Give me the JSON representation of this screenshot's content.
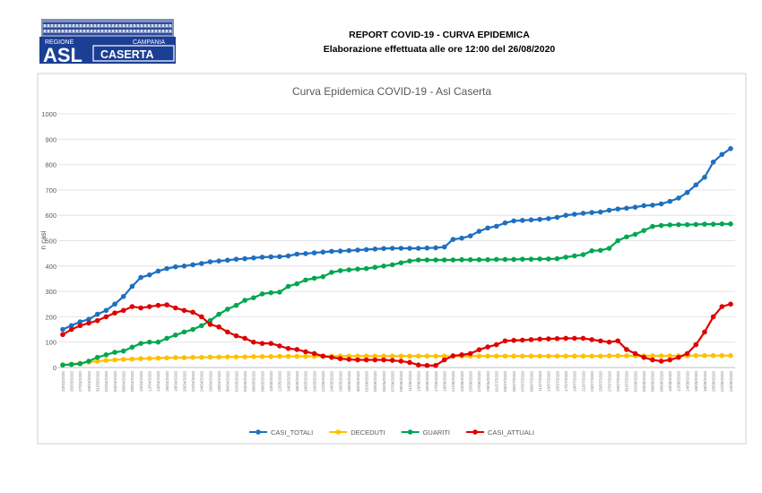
{
  "header": {
    "title": "REPORT COVID-19 - CURVA EPIDEMICA",
    "subtitle": "Elaborazione effettuata alle ore 12:00 del 26/08/2020"
  },
  "logo": {
    "region": "REGIONE",
    "region2": "CAMPANIA",
    "asl": "ASL",
    "city": "CASERTA",
    "color": "#1b3f94"
  },
  "chart_data": {
    "type": "line",
    "title": "Curva Epidemica COVID-19 - Asl Caserta",
    "ylabel": "n casi",
    "xlabel": "",
    "ylim": [
      0,
      1000
    ],
    "yticks": [
      "0",
      "100",
      "200",
      "300",
      "400",
      "500",
      "600",
      "700",
      "800",
      "900",
      "1000"
    ],
    "grid": true,
    "legend_placement": "bottom",
    "x": [
      "23/03/2020",
      "25/03/2020",
      "27/03/2020",
      "29/03/2020",
      "31/03/2020",
      "02/04/2020",
      "04/04/2020",
      "06/04/2020",
      "08/04/2020",
      "10/04/2020",
      "12/04/2020",
      "14/04/2020",
      "16/04/2020",
      "18/04/2020",
      "20/04/2020",
      "22/04/2020",
      "24/04/2020",
      "26/04/2020",
      "28/04/2020",
      "30/04/2020",
      "02/05/2020",
      "04/05/2020",
      "06/05/2020",
      "08/05/2020",
      "10/05/2020",
      "12/05/2020",
      "14/05/2020",
      "16/05/2020",
      "18/05/2020",
      "20/05/2020",
      "22/05/2020",
      "24/05/2020",
      "26/05/2020",
      "28/05/2020",
      "30/05/2020",
      "01/06/2020",
      "03/06/2020",
      "05/06/2020",
      "07/06/2020",
      "09/06/2020",
      "11/06/2020",
      "13/06/2020",
      "15/06/2020",
      "17/06/2020",
      "19/06/2020",
      "21/06/2020",
      "23/06/2020",
      "25/06/2020",
      "27/06/2020",
      "29/06/2020",
      "01/07/2020",
      "03/07/2020",
      "05/07/2020",
      "07/07/2020",
      "09/07/2020",
      "11/07/2020",
      "13/07/2020",
      "15/07/2020",
      "17/07/2020",
      "19/07/2020",
      "21/07/2020",
      "23/07/2020",
      "25/07/2020",
      "27/07/2020",
      "29/07/2020",
      "31/07/2020",
      "02/08/2020",
      "04/08/2020",
      "06/08/2020",
      "08/08/2020",
      "10/08/2020",
      "12/08/2020",
      "14/08/2020",
      "16/08/2020",
      "18/08/2020",
      "20/08/2020",
      "22/08/2020",
      "24/08/2020"
    ],
    "series": [
      {
        "name": "CASI_TOTALI",
        "color": "#1f6fbf",
        "values": [
          150,
          165,
          180,
          190,
          210,
          225,
          250,
          280,
          320,
          355,
          365,
          380,
          390,
          397,
          400,
          405,
          410,
          417,
          420,
          423,
          427,
          429,
          432,
          435,
          436,
          437,
          440,
          447,
          449,
          452,
          455,
          458,
          459,
          461,
          463,
          465,
          467,
          469,
          470,
          470,
          470,
          470,
          471,
          472,
          475,
          505,
          510,
          519,
          537,
          550,
          557,
          570,
          578,
          580,
          582,
          584,
          587,
          592,
          600,
          604,
          608,
          611,
          613,
          620,
          625,
          628,
          632,
          638,
          640,
          645,
          655,
          668,
          690,
          720,
          750,
          810,
          840,
          863
        ]
      },
      {
        "name": "DECEDUTI",
        "color": "#ffc000",
        "values": [
          10,
          13,
          17,
          21,
          25,
          28,
          30,
          32,
          33,
          35,
          36,
          37,
          38,
          39,
          39,
          40,
          40,
          41,
          41,
          42,
          42,
          42,
          43,
          43,
          43,
          44,
          44,
          44,
          44,
          44,
          45,
          45,
          45,
          45,
          45,
          45,
          45,
          45,
          45,
          45,
          45,
          45,
          45,
          45,
          45,
          45,
          45,
          45,
          45,
          45,
          45,
          45,
          45,
          45,
          45,
          45,
          45,
          45,
          45,
          45,
          45,
          45,
          45,
          46,
          46,
          46,
          46,
          46,
          46,
          46,
          46,
          46,
          46,
          47,
          47,
          47,
          47,
          47
        ]
      },
      {
        "name": "GUARITI",
        "color": "#00a650",
        "values": [
          10,
          12,
          15,
          25,
          40,
          50,
          60,
          65,
          80,
          95,
          100,
          100,
          115,
          128,
          140,
          150,
          165,
          185,
          210,
          230,
          245,
          265,
          275,
          290,
          295,
          297,
          320,
          330,
          345,
          352,
          358,
          375,
          382,
          385,
          388,
          390,
          395,
          400,
          405,
          413,
          420,
          424,
          424,
          424,
          424,
          424,
          425,
          425,
          425,
          425,
          426,
          426,
          426,
          427,
          427,
          428,
          428,
          429,
          435,
          440,
          445,
          460,
          462,
          470,
          500,
          515,
          525,
          540,
          556,
          560,
          562,
          563,
          563,
          564,
          565,
          565,
          566,
          566
        ]
      },
      {
        "name": "CASI_ATTUALI",
        "color": "#e00000",
        "values": [
          130,
          150,
          165,
          175,
          185,
          200,
          215,
          225,
          240,
          235,
          240,
          245,
          247,
          235,
          225,
          218,
          200,
          170,
          160,
          140,
          125,
          115,
          100,
          95,
          95,
          85,
          75,
          71,
          62,
          55,
          45,
          40,
          35,
          32,
          30,
          30,
          30,
          30,
          28,
          25,
          20,
          10,
          8,
          8,
          30,
          46,
          50,
          55,
          70,
          81,
          90,
          105,
          107,
          108,
          110,
          112,
          113,
          114,
          115,
          115,
          115,
          110,
          105,
          100,
          105,
          71,
          55,
          40,
          30,
          25,
          30,
          40,
          55,
          90,
          140,
          200,
          240,
          250
        ]
      }
    ]
  }
}
